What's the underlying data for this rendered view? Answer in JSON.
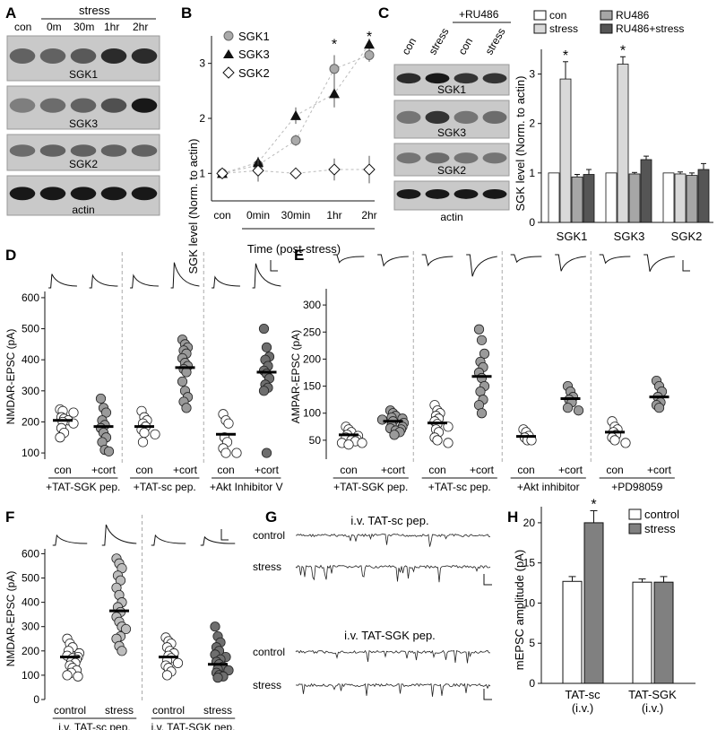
{
  "panels": {
    "A": {
      "letter": "A",
      "con_label": "con",
      "stress_label": "stress",
      "times": [
        "0m",
        "30m",
        "1hr",
        "2hr"
      ],
      "blots": [
        "SGK1",
        "SGK3",
        "SGK2",
        "actin"
      ]
    },
    "B": {
      "letter": "B",
      "ylabel": "SGK  level (Norm. to actin)",
      "xlabel": "Time (post-stress)",
      "categories": [
        "con",
        "0min",
        "30min",
        "1hr",
        "2hr"
      ],
      "yticks": [
        "1",
        "2",
        "3"
      ],
      "series": [
        {
          "name": "SGK1",
          "marker": "circle",
          "color": "#aaaaaa",
          "values": [
            1.0,
            1.15,
            1.6,
            2.9,
            3.15
          ],
          "err": [
            0.04,
            0.1,
            0.1,
            0.25,
            0.12
          ]
        },
        {
          "name": "SGK3",
          "marker": "triangle",
          "color": "#111111",
          "values": [
            1.0,
            1.2,
            2.05,
            2.45,
            3.35
          ],
          "err": [
            0.04,
            0.1,
            0.15,
            0.25,
            0.1
          ]
        },
        {
          "name": "SGK2",
          "marker": "diamond",
          "color": "#ffffff",
          "values": [
            1.0,
            1.05,
            1.0,
            1.07,
            1.07
          ],
          "err": [
            0.04,
            0.2,
            0.08,
            0.2,
            0.25
          ]
        }
      ],
      "stars": [
        "*",
        "*"
      ],
      "ylim": [
        0.5,
        3.5
      ]
    },
    "C": {
      "letter": "C",
      "ru486_label": "+RU486",
      "lane_labels": [
        "con",
        "stress",
        "con",
        "stress"
      ],
      "blots": [
        "SGK1",
        "SGK3",
        "SGK2",
        "actin"
      ],
      "legend": [
        "con",
        "stress",
        "RU486",
        "RU486+stress"
      ],
      "colors": [
        "#ffffff",
        "#d9d9d9",
        "#a6a6a6",
        "#555555"
      ],
      "ylabel": "SGK  level (Norm. to actin)",
      "categories": [
        "SGK1",
        "SGK3",
        "SGK2"
      ],
      "values": [
        [
          1.0,
          2.9,
          0.92,
          0.97
        ],
        [
          1.0,
          3.2,
          0.98,
          1.27
        ],
        [
          1.0,
          0.98,
          0.95,
          1.07
        ]
      ],
      "err": [
        [
          0,
          0.35,
          0.05,
          0.1
        ],
        [
          0,
          0.15,
          0.03,
          0.07
        ],
        [
          0,
          0.04,
          0.05,
          0.12
        ]
      ],
      "yticks": [
        "0",
        "1",
        "2",
        "3"
      ],
      "stars": [
        "*",
        "*"
      ],
      "ylim": [
        0,
        3.5
      ]
    },
    "D": {
      "letter": "D",
      "ylabel": "NMDAR-EPSC (pA)",
      "yticks": [
        "100",
        "200",
        "300",
        "400",
        "500",
        "600"
      ],
      "xlabels": [
        "con",
        "+cort",
        "con",
        "+cort",
        "con",
        "+cort"
      ],
      "groups": [
        "+TAT-SGK pep.",
        "+TAT-sc pep.",
        "+Akt Inhibitor V"
      ],
      "columns": [
        {
          "fill": "#ffffff",
          "mean": 205,
          "values": [
            240,
            235,
            230,
            215,
            210,
            205,
            200,
            195,
            180,
            165,
            150
          ]
        },
        {
          "fill": "#9a9a9a",
          "mean": 185,
          "values": [
            275,
            245,
            230,
            205,
            190,
            180,
            165,
            150,
            135,
            110,
            105
          ]
        },
        {
          "fill": "#ffffff",
          "mean": 185,
          "values": [
            235,
            215,
            205,
            195,
            185,
            175,
            165,
            160,
            135
          ]
        },
        {
          "fill": "#9a9a9a",
          "mean": 375,
          "values": [
            465,
            450,
            440,
            430,
            420,
            405,
            390,
            380,
            370,
            360,
            330,
            300,
            280,
            265,
            245
          ]
        },
        {
          "fill": "#ffffff",
          "mean": 160,
          "values": [
            225,
            205,
            195,
            150,
            135,
            115,
            100,
            100
          ]
        },
        {
          "fill": "#6e6e6e",
          "mean": 360,
          "values": [
            500,
            440,
            410,
            400,
            380,
            365,
            355,
            340,
            320,
            310,
            300,
            100
          ]
        }
      ],
      "ylim": [
        80,
        620
      ]
    },
    "E": {
      "letter": "E",
      "ylabel": "AMPAR-EPSC (pA)",
      "yticks": [
        "50",
        "100",
        "150",
        "200",
        "250",
        "300"
      ],
      "xlabels": [
        "con",
        "+cort",
        "con",
        "+cort",
        "con",
        "+cort",
        "con",
        "+cort"
      ],
      "groups": [
        "+TAT-SGK pep.",
        "+TAT-sc pep.",
        "+Akt inhibitor",
        "+PD98059"
      ],
      "columns": [
        {
          "fill": "#ffffff",
          "mean": 60,
          "values": [
            75,
            70,
            65,
            60,
            58,
            55,
            52,
            50,
            48,
            45,
            45,
            42
          ]
        },
        {
          "fill": "#9a9a9a",
          "mean": 85,
          "values": [
            105,
            100,
            95,
            92,
            90,
            88,
            85,
            82,
            78,
            75,
            72,
            70,
            68,
            65,
            60
          ]
        },
        {
          "fill": "#ffffff",
          "mean": 82,
          "values": [
            115,
            105,
            100,
            95,
            90,
            85,
            80,
            75,
            70,
            65,
            55,
            50,
            45
          ]
        },
        {
          "fill": "#9a9a9a",
          "mean": 168,
          "values": [
            255,
            235,
            210,
            195,
            185,
            175,
            165,
            150,
            140,
            125,
            115,
            100
          ]
        },
        {
          "fill": "#ffffff",
          "mean": 57,
          "values": [
            70,
            65,
            58,
            55,
            50,
            50
          ]
        },
        {
          "fill": "#9a9a9a",
          "mean": 127,
          "values": [
            150,
            140,
            130,
            125,
            120,
            110,
            105
          ]
        },
        {
          "fill": "#ffffff",
          "mean": 65,
          "values": [
            85,
            75,
            70,
            65,
            60,
            55,
            50,
            45
          ]
        },
        {
          "fill": "#9a9a9a",
          "mean": 130,
          "values": [
            160,
            150,
            140,
            130,
            120,
            115,
            110
          ]
        }
      ],
      "ylim": [
        15,
        330
      ]
    },
    "F": {
      "letter": "F",
      "ylabel": "NMDAR-EPSC (pA)",
      "yticks": [
        "0",
        "100",
        "200",
        "300",
        "400",
        "500",
        "600"
      ],
      "xlabels": [
        "control",
        "stress",
        "control",
        "stress"
      ],
      "groups": [
        "i.v. TAT-sc pep.",
        "i.v. TAT-SGK pep."
      ],
      "columns": [
        {
          "fill": "#ffffff",
          "mean": 175,
          "values": [
            250,
            230,
            215,
            200,
            190,
            180,
            175,
            170,
            165,
            155,
            150,
            140,
            130,
            120,
            110,
            100,
            95
          ]
        },
        {
          "fill": "#bdbdbd",
          "mean": 365,
          "values": [
            580,
            560,
            540,
            510,
            490,
            460,
            430,
            400,
            380,
            360,
            340,
            320,
            300,
            290,
            260,
            250,
            220,
            200
          ]
        },
        {
          "fill": "#ffffff",
          "mean": 175,
          "values": [
            255,
            240,
            230,
            215,
            200,
            190,
            180,
            170,
            160,
            150,
            140,
            130,
            115,
            100
          ]
        },
        {
          "fill": "#6e6e6e",
          "mean": 145,
          "values": [
            300,
            260,
            235,
            215,
            200,
            185,
            175,
            165,
            155,
            145,
            135,
            125,
            120,
            110,
            100,
            95,
            90
          ]
        }
      ],
      "ylim": [
        0,
        620
      ]
    },
    "G": {
      "letter": "G",
      "blocks": [
        {
          "title": "i.v. TAT-sc pep.",
          "rows": [
            "control",
            "stress"
          ]
        },
        {
          "title": "i.v. TAT-SGK pep.",
          "rows": [
            "control",
            "stress"
          ]
        }
      ]
    },
    "H": {
      "letter": "H",
      "ylabel": "mEPSC amplitude (pA)",
      "legend": [
        "control",
        "stress"
      ],
      "colors": [
        "#ffffff",
        "#808080"
      ],
      "categories": [
        "TAT-sc",
        "TAT-SGK"
      ],
      "sublabels": [
        "(i.v.)",
        "(i.v.)"
      ],
      "values": [
        [
          12.7,
          20.0
        ],
        [
          12.6,
          12.6
        ]
      ],
      "err": [
        [
          0.6,
          1.5
        ],
        [
          0.4,
          0.7
        ]
      ],
      "yticks": [
        "0",
        "5",
        "10",
        "15",
        "20"
      ],
      "stars": [
        "*"
      ],
      "ylim": [
        0,
        22
      ]
    }
  }
}
